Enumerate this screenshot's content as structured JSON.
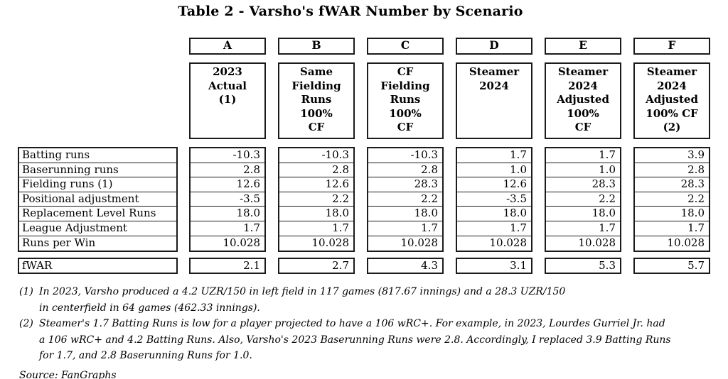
{
  "title": "Table 2 - Varsho's fWAR Number by Scenario",
  "colors": {
    "text": "#000000",
    "border": "#1b1b1b",
    "background": "#ffffff"
  },
  "table": {
    "row_labels": [
      "Batting runs",
      "Baserunning runs",
      "Fielding runs (1)",
      "Positional adjustment",
      "Replacement Level Runs",
      "League Adjustment",
      "Runs per Win"
    ],
    "fwar_label": "fWAR",
    "columns": [
      {
        "letter": "A",
        "scenario_lines": [
          "2023",
          "Actual",
          "(1)"
        ],
        "values": [
          "-10.3",
          "2.8",
          "12.6",
          "-3.5",
          "18.0",
          "1.7",
          "10.028"
        ],
        "fwar": "2.1"
      },
      {
        "letter": "B",
        "scenario_lines": [
          "Same",
          "Fielding",
          "Runs",
          "100%",
          "CF"
        ],
        "values": [
          "-10.3",
          "2.8",
          "12.6",
          "2.2",
          "18.0",
          "1.7",
          "10.028"
        ],
        "fwar": "2.7"
      },
      {
        "letter": "C",
        "scenario_lines": [
          "CF",
          "Fielding",
          "Runs",
          "100%",
          "CF"
        ],
        "values": [
          "-10.3",
          "2.8",
          "28.3",
          "2.2",
          "18.0",
          "1.7",
          "10.028"
        ],
        "fwar": "4.3"
      },
      {
        "letter": "D",
        "scenario_lines": [
          "Steamer",
          "2024"
        ],
        "values": [
          "1.7",
          "1.0",
          "12.6",
          "-3.5",
          "18.0",
          "1.7",
          "10.028"
        ],
        "fwar": "3.1"
      },
      {
        "letter": "E",
        "scenario_lines": [
          "Steamer",
          "2024",
          "Adjusted",
          "100%",
          "CF"
        ],
        "values": [
          "1.7",
          "1.0",
          "28.3",
          "2.2",
          "18.0",
          "1.7",
          "10.028"
        ],
        "fwar": "5.3"
      },
      {
        "letter": "F",
        "scenario_lines": [
          "Steamer",
          "2024",
          "Adjusted",
          "100% CF",
          "(2)"
        ],
        "values": [
          "3.9",
          "2.8",
          "28.3",
          "2.2",
          "18.0",
          "1.7",
          "10.028"
        ],
        "fwar": "5.7"
      }
    ]
  },
  "footnotes": [
    {
      "marker": "(1)",
      "lines": [
        "In 2023, Varsho produced a 4.2 UZR/150 in left field in 117 games (817.67 innings) and a 28.3 UZR/150",
        "in centerfield in 64 games (462.33 innings)."
      ]
    },
    {
      "marker": "(2)",
      "lines": [
        "Steamer's 1.7 Batting Runs is low for a player projected to have a 106 wRC+. For example, in 2023, Lourdes Gurriel Jr. had",
        "a 106 wRC+ and 4.2 Batting Runs. Also, Varsho's 2023 Baserunning Runs were 2.8. Accordingly, I replaced 3.9 Batting Runs",
        "for 1.7, and 2.8 Baserunning Runs for 1.0."
      ]
    }
  ],
  "source": "Source: FanGraphs",
  "chart_data": {
    "type": "table",
    "title": "Table 2 - Varsho's fWAR Number by Scenario",
    "columns": [
      "A",
      "B",
      "C",
      "D",
      "E",
      "F"
    ],
    "column_scenarios": [
      "2023 Actual (1)",
      "Same Fielding Runs 100% CF",
      "CF Fielding Runs 100% CF",
      "Steamer 2024",
      "Steamer 2024 Adjusted 100% CF",
      "Steamer 2024 Adjusted 100% CF (2)"
    ],
    "rows": [
      {
        "label": "Batting runs",
        "values": [
          -10.3,
          -10.3,
          -10.3,
          1.7,
          1.7,
          3.9
        ]
      },
      {
        "label": "Baserunning runs",
        "values": [
          2.8,
          2.8,
          2.8,
          1.0,
          1.0,
          2.8
        ]
      },
      {
        "label": "Fielding runs (1)",
        "values": [
          12.6,
          12.6,
          28.3,
          12.6,
          28.3,
          28.3
        ]
      },
      {
        "label": "Positional adjustment",
        "values": [
          -3.5,
          2.2,
          2.2,
          -3.5,
          2.2,
          2.2
        ]
      },
      {
        "label": "Replacement Level Runs",
        "values": [
          18.0,
          18.0,
          18.0,
          18.0,
          18.0,
          18.0
        ]
      },
      {
        "label": "League Adjustment",
        "values": [
          1.7,
          1.7,
          1.7,
          1.7,
          1.7,
          1.7
        ]
      },
      {
        "label": "Runs per Win",
        "values": [
          10.028,
          10.028,
          10.028,
          10.028,
          10.028,
          10.028
        ]
      },
      {
        "label": "fWAR",
        "values": [
          2.1,
          2.7,
          4.3,
          3.1,
          5.3,
          5.7
        ]
      }
    ],
    "source": "FanGraphs"
  }
}
